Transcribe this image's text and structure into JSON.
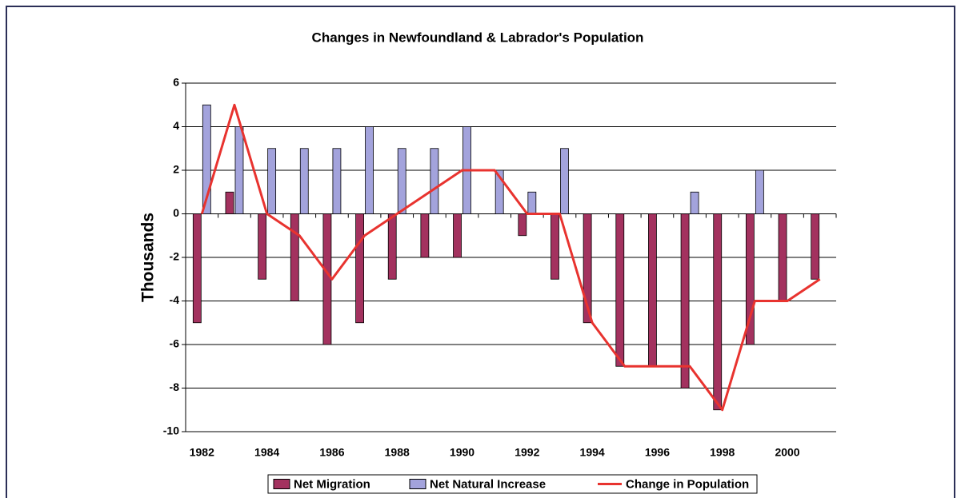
{
  "chart_data": {
    "type": "bar_line",
    "title": "Changes in Newfoundland & Labrador's Population",
    "ylabel": "Thousands",
    "categories": [
      "1982",
      null,
      "1984",
      null,
      "1986",
      null,
      "1988",
      null,
      "1990",
      null,
      "1992",
      null,
      "1994",
      null,
      "1996",
      null,
      "1998",
      null,
      "2000",
      null
    ],
    "series": [
      {
        "name": "Net Migration",
        "type": "bar",
        "color": "#a3325f",
        "values": [
          -5,
          1,
          -3,
          -4,
          -6,
          -5,
          -3,
          -2,
          -2,
          0,
          -1,
          -3,
          -5,
          -7,
          -7,
          -8,
          -9,
          -6,
          -4,
          -3
        ]
      },
      {
        "name": "Net Natural Increase",
        "type": "bar",
        "color": "#a3a3dc",
        "values": [
          5,
          4,
          3,
          3,
          3,
          4,
          3,
          3,
          4,
          2,
          1,
          3,
          0,
          0,
          0,
          1,
          0,
          2,
          0,
          0
        ]
      },
      {
        "name": "Change in Population",
        "type": "line",
        "color": "#e8332f",
        "values": [
          0,
          5,
          0,
          -1,
          -3,
          -1,
          0,
          1,
          2,
          2,
          0,
          0,
          -5,
          -7,
          -7,
          -7,
          -9,
          -4,
          -4,
          -3
        ]
      }
    ],
    "ylim": [
      -10,
      6
    ],
    "yticks": [
      -10,
      -8,
      -6,
      -4,
      -2,
      0,
      2,
      4,
      6
    ],
    "grid": true,
    "legend": "bottom"
  }
}
